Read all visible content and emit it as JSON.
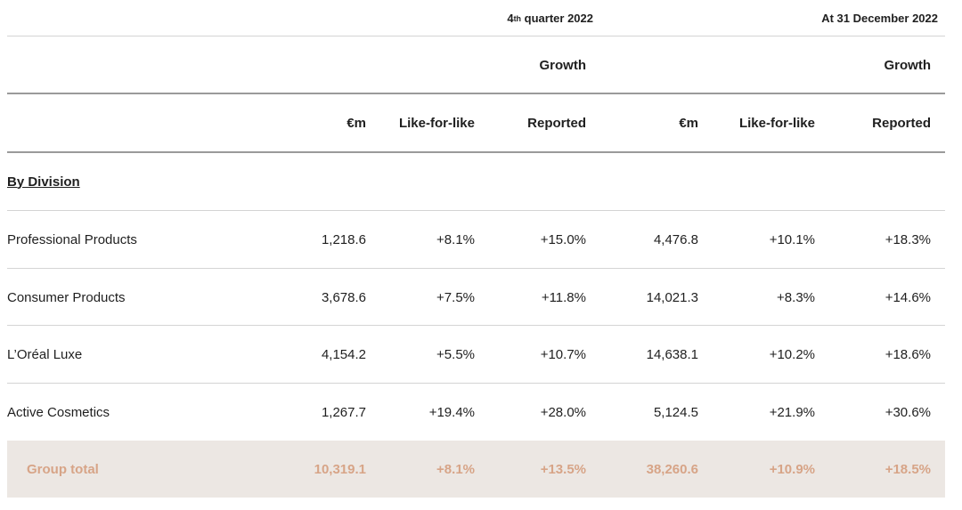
{
  "header": {
    "q4_pre": "4",
    "q4_sup": "th",
    "q4_post": " quarter 2022",
    "fy_label": "At 31 December 2022",
    "growth_label_q4": "Growth",
    "growth_label_fy": "Growth"
  },
  "columns": {
    "q4_em": "€m",
    "q4_lfl": "Like-for-like",
    "q4_reported": "Reported",
    "fy_em": "€m",
    "fy_lfl": "Like-for-like",
    "fy_reported": "Reported"
  },
  "section_title": "By Division",
  "rows": [
    {
      "name": "Professional Products",
      "q4_em": "1,218.6",
      "q4_lfl": "+8.1%",
      "q4_rep": "+15.0%",
      "fy_em": "4,476.8",
      "fy_lfl": "+10.1%",
      "fy_rep": "+18.3%"
    },
    {
      "name": "Consumer Products",
      "q4_em": "3,678.6",
      "q4_lfl": "+7.5%",
      "q4_rep": "+11.8%",
      "fy_em": "14,021.3",
      "fy_lfl": "+8.3%",
      "fy_rep": "+14.6%"
    },
    {
      "name": "L’Oréal Luxe",
      "q4_em": "4,154.2",
      "q4_lfl": "+5.5%",
      "q4_rep": "+10.7%",
      "fy_em": "14,638.1",
      "fy_lfl": "+10.2%",
      "fy_rep": "+18.6%"
    },
    {
      "name": "Active Cosmetics",
      "q4_em": "1,267.7",
      "q4_lfl": "+19.4%",
      "q4_rep": "+28.0%",
      "fy_em": "5,124.5",
      "fy_lfl": "+21.9%",
      "fy_rep": "+30.6%"
    }
  ],
  "total": {
    "name": "Group total",
    "q4_em": "10,319.1",
    "q4_lfl": "+8.1%",
    "q4_rep": "+13.5%",
    "fy_em": "38,260.6",
    "fy_lfl": "+10.9%",
    "fy_rep": "+18.5%"
  },
  "colors": {
    "total_text": "#d7a487",
    "total_bg": "#ece7e3"
  }
}
